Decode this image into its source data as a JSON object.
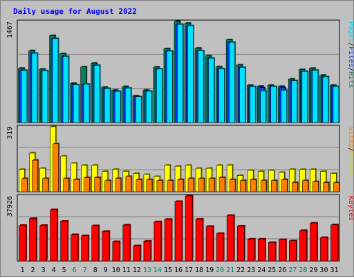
{
  "chart_data": {
    "type": "bar",
    "title": "Daily usage for August 2022",
    "categories": [
      "1",
      "2",
      "3",
      "4",
      "5",
      "6",
      "7",
      "8",
      "9",
      "10",
      "11",
      "12",
      "13",
      "14",
      "15",
      "16",
      "17",
      "18",
      "19",
      "20",
      "21",
      "22",
      "23",
      "24",
      "25",
      "26",
      "27",
      "28",
      "29",
      "30",
      "31"
    ],
    "weekend_days": [
      "6",
      "7",
      "13",
      "14",
      "20",
      "21",
      "27",
      "28"
    ],
    "panels": [
      {
        "name": "hits-files-pages",
        "ymax_label": "1467",
        "ymax": 1467,
        "axis_label_parts": [
          "Pages",
          "/",
          "Files",
          "/",
          "Hits"
        ],
        "series": [
          {
            "name": "Hits",
            "color": "#00805c",
            "values": [
              787,
              1043,
              775,
              1262,
              999,
              568,
              807,
              861,
              513,
              470,
              522,
              388,
              471,
              804,
              1071,
              1467,
              1440,
              1079,
              967,
              810,
              1201,
              835,
              541,
              526,
              541,
              524,
              631,
              769,
              786,
              686,
              541
            ]
          },
          {
            "name": "Files",
            "color": "#0040ff",
            "values": [
              757,
              1004,
              751,
              1218,
              960,
              546,
              557,
              831,
              494,
              451,
              500,
              375,
              454,
              775,
              1036,
              1425,
              1405,
              1041,
              934,
              780,
              1164,
              799,
              521,
              506,
              522,
              505,
              606,
              742,
              759,
              664,
              522
            ]
          },
          {
            "name": "Pages",
            "color": "#00e0ff",
            "values": [
              757,
              1004,
              751,
              1218,
              960,
              546,
              557,
              831,
              494,
              451,
              500,
              375,
              454,
              775,
              1036,
              1425,
              1405,
              1041,
              934,
              780,
              1164,
              799,
              521,
              460,
              522,
              470,
              606,
              742,
              759,
              664,
              522
            ]
          }
        ]
      },
      {
        "name": "visits-sites",
        "ymax_label": "319",
        "ymax": 319,
        "axis_label_parts": [
          "Sites",
          "/",
          "Visits"
        ],
        "series": [
          {
            "name": "Visits",
            "color": "#ffff00",
            "values": [
              110,
              190,
              115,
              319,
              175,
              140,
              130,
              130,
              100,
              110,
              100,
              90,
              85,
              75,
              130,
              125,
              130,
              115,
              115,
              130,
              130,
              80,
              105,
              100,
              105,
              95,
              110,
              110,
              110,
              100,
              90
            ]
          },
          {
            "name": "Sites",
            "color": "#ff8000",
            "values": [
              65,
              155,
              65,
              235,
              65,
              60,
              70,
              70,
              55,
              65,
              75,
              60,
              60,
              55,
              55,
              60,
              65,
              65,
              65,
              70,
              60,
              55,
              60,
              55,
              55,
              60,
              45,
              55,
              50,
              45,
              45
            ]
          }
        ]
      },
      {
        "name": "kbytes",
        "ymax_label": "37926",
        "ymax": 37926,
        "axis_label_parts": [
          "KBytes"
        ],
        "series": [
          {
            "name": "KBytes",
            "color": "#ff0000",
            "values": [
              20800,
              24800,
              20800,
              29900,
              23200,
              15400,
              14800,
              20600,
              17300,
              11300,
              21000,
              8900,
              11600,
              22900,
              24300,
              34700,
              37926,
              24400,
              20200,
              16100,
              26600,
              20400,
              12800,
              12800,
              10800,
              12500,
              11800,
              17800,
              22100,
              13700,
              21100
            ]
          }
        ]
      }
    ]
  }
}
